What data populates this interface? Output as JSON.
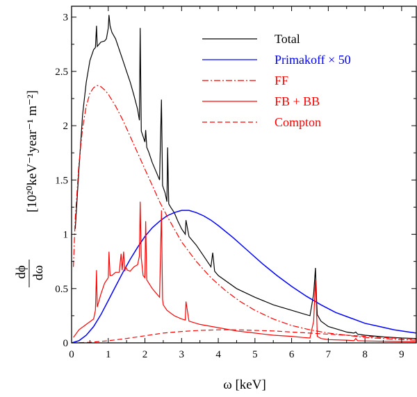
{
  "chart_data": {
    "type": "line",
    "xlabel": "ω [keV]",
    "ylabel_fraction_num": "dϕ",
    "ylabel_fraction_den": "dω",
    "ylabel_units": "[10²⁰keV⁻¹year⁻¹ m⁻²]",
    "xlim": [
      0,
      9.4
    ],
    "ylim": [
      0,
      3.1
    ],
    "xticks": [
      0,
      1,
      2,
      3,
      4,
      5,
      6,
      7,
      8,
      9
    ],
    "yticks": [
      0,
      0.5,
      1,
      1.5,
      2,
      2.5,
      3
    ],
    "ytick_labels": [
      "0",
      "0.5",
      "1",
      "1.5",
      "2",
      "2.5",
      "3"
    ],
    "legend_position": "top-right",
    "series": [
      {
        "name": "Total",
        "color": "#000000",
        "style": "solid",
        "x": [
          0.1,
          0.2,
          0.3,
          0.4,
          0.5,
          0.6,
          0.65,
          0.68,
          0.7,
          0.75,
          0.8,
          0.9,
          0.95,
          1.0,
          1.02,
          1.05,
          1.1,
          1.2,
          1.3,
          1.4,
          1.5,
          1.6,
          1.7,
          1.8,
          1.85,
          1.87,
          1.9,
          1.95,
          2.0,
          2.02,
          2.05,
          2.1,
          2.2,
          2.3,
          2.4,
          2.45,
          2.48,
          2.5,
          2.55,
          2.6,
          2.62,
          2.65,
          2.7,
          2.8,
          2.9,
          3.0,
          3.1,
          3.12,
          3.2,
          3.4,
          3.6,
          3.8,
          3.85,
          3.9,
          4.0,
          4.5,
          5.0,
          5.5,
          6.0,
          6.3,
          6.5,
          6.6,
          6.65,
          6.68,
          6.7,
          6.8,
          7.0,
          7.3,
          7.5,
          7.7,
          7.75,
          7.8,
          8.0,
          8.5,
          9.0,
          9.4
        ],
        "y": [
          1.05,
          1.6,
          2.1,
          2.4,
          2.6,
          2.7,
          2.72,
          2.92,
          2.73,
          2.75,
          2.77,
          2.78,
          2.8,
          2.9,
          3.02,
          2.92,
          2.86,
          2.8,
          2.7,
          2.6,
          2.5,
          2.4,
          2.28,
          2.15,
          2.05,
          2.9,
          1.95,
          1.9,
          1.85,
          1.96,
          1.8,
          1.76,
          1.66,
          1.58,
          1.5,
          2.24,
          1.45,
          1.43,
          1.38,
          1.3,
          1.8,
          1.28,
          1.25,
          1.2,
          1.12,
          1.05,
          1.0,
          1.13,
          0.98,
          0.9,
          0.8,
          0.7,
          0.83,
          0.66,
          0.62,
          0.5,
          0.42,
          0.35,
          0.3,
          0.27,
          0.25,
          0.45,
          0.69,
          0.4,
          0.26,
          0.2,
          0.15,
          0.12,
          0.1,
          0.09,
          0.1,
          0.08,
          0.07,
          0.055,
          0.045,
          0.04
        ]
      },
      {
        "name": "Primakoff × 50",
        "color": "#0000ff",
        "style": "solid",
        "x": [
          0,
          0.2,
          0.4,
          0.6,
          0.8,
          1.0,
          1.2,
          1.4,
          1.6,
          1.8,
          2.0,
          2.2,
          2.4,
          2.6,
          2.8,
          3.0,
          3.2,
          3.4,
          3.6,
          3.8,
          4.0,
          4.4,
          4.8,
          5.2,
          5.6,
          6.0,
          6.4,
          6.8,
          7.2,
          7.6,
          8.0,
          8.4,
          8.8,
          9.2,
          9.4
        ],
        "y": [
          0.0,
          0.02,
          0.07,
          0.15,
          0.26,
          0.39,
          0.52,
          0.65,
          0.77,
          0.88,
          0.98,
          1.06,
          1.12,
          1.17,
          1.2,
          1.22,
          1.22,
          1.2,
          1.17,
          1.13,
          1.08,
          0.97,
          0.85,
          0.73,
          0.62,
          0.52,
          0.43,
          0.35,
          0.28,
          0.23,
          0.18,
          0.15,
          0.12,
          0.1,
          0.09
        ]
      },
      {
        "name": "FF",
        "color": "#ff0000",
        "style": "dashdot",
        "x": [
          0.05,
          0.1,
          0.2,
          0.3,
          0.4,
          0.5,
          0.6,
          0.7,
          0.8,
          0.9,
          1.0,
          1.2,
          1.4,
          1.6,
          1.8,
          2.0,
          2.2,
          2.4,
          2.6,
          2.8,
          3.0,
          3.4,
          3.8,
          4.2,
          4.6,
          5.0,
          5.5,
          6.0,
          6.5,
          7.0,
          7.5,
          8.0,
          8.5,
          9.0,
          9.4
        ],
        "y": [
          0.7,
          1.15,
          1.65,
          1.98,
          2.18,
          2.3,
          2.35,
          2.37,
          2.36,
          2.33,
          2.29,
          2.18,
          2.05,
          1.9,
          1.75,
          1.6,
          1.45,
          1.3,
          1.17,
          1.05,
          0.93,
          0.75,
          0.6,
          0.48,
          0.38,
          0.3,
          0.22,
          0.16,
          0.12,
          0.09,
          0.07,
          0.05,
          0.04,
          0.03,
          0.025
        ]
      },
      {
        "name": "FB + BB",
        "color": "#ff0000",
        "style": "solid",
        "x": [
          0.05,
          0.2,
          0.4,
          0.6,
          0.65,
          0.68,
          0.7,
          0.8,
          0.9,
          1.0,
          1.02,
          1.05,
          1.1,
          1.2,
          1.3,
          1.35,
          1.38,
          1.42,
          1.45,
          1.48,
          1.52,
          1.6,
          1.7,
          1.8,
          1.85,
          1.87,
          1.9,
          1.95,
          2.0,
          2.02,
          2.05,
          2.2,
          2.4,
          2.45,
          2.48,
          2.5,
          2.6,
          2.8,
          3.0,
          3.1,
          3.12,
          3.2,
          3.5,
          4.0,
          4.5,
          5.0,
          5.5,
          6.0,
          6.3,
          6.5,
          6.6,
          6.65,
          6.68,
          6.7,
          6.8,
          7.0,
          7.5,
          7.7,
          7.75,
          7.8,
          8.0,
          8.5,
          9.0,
          9.4
        ],
        "y": [
          0.05,
          0.12,
          0.17,
          0.22,
          0.3,
          0.67,
          0.33,
          0.45,
          0.55,
          0.6,
          0.84,
          0.62,
          0.62,
          0.65,
          0.65,
          0.82,
          0.67,
          0.84,
          0.66,
          0.7,
          0.67,
          0.66,
          0.7,
          0.72,
          0.8,
          1.3,
          0.78,
          0.62,
          0.6,
          1.12,
          0.58,
          0.5,
          0.42,
          1.22,
          0.4,
          0.35,
          0.3,
          0.25,
          0.22,
          0.21,
          0.38,
          0.2,
          0.17,
          0.14,
          0.11,
          0.09,
          0.07,
          0.06,
          0.05,
          0.045,
          0.2,
          0.58,
          0.3,
          0.06,
          0.04,
          0.03,
          0.025,
          0.02,
          0.04,
          0.02,
          0.018,
          0.015,
          0.012,
          0.01
        ]
      },
      {
        "name": "Compton",
        "color": "#ff0000",
        "style": "dashed",
        "x": [
          0,
          0.5,
          1.0,
          1.5,
          2.0,
          2.5,
          3.0,
          3.5,
          4.0,
          4.5,
          5.0,
          5.5,
          6.0,
          6.5,
          7.0,
          7.5,
          8.0,
          8.5,
          9.0,
          9.4
        ],
        "y": [
          0.0,
          0.005,
          0.02,
          0.04,
          0.065,
          0.09,
          0.105,
          0.115,
          0.12,
          0.12,
          0.115,
          0.11,
          0.1,
          0.09,
          0.08,
          0.07,
          0.06,
          0.05,
          0.04,
          0.035
        ]
      }
    ]
  }
}
